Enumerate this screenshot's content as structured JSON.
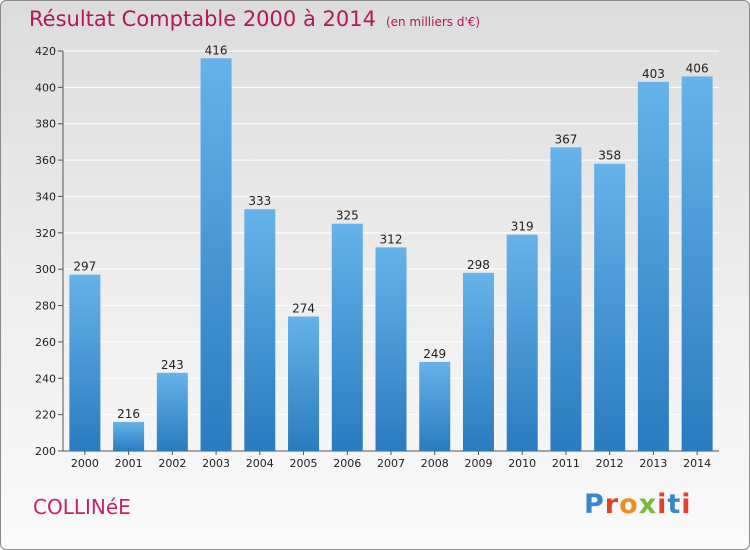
{
  "header": {
    "title": "Résultat Comptable 2000 à 2014",
    "subtitle": "(en milliers d'€)"
  },
  "footer": {
    "commune": "COLLINéE",
    "logo": {
      "text": "Proxiti",
      "colors": [
        "#3a87c8",
        "#e0412b",
        "#ec8f1e",
        "#7ab935",
        "#e0412b",
        "#3a87c8",
        "#e0412b"
      ]
    }
  },
  "colors": {
    "bar_light": "#66b2ea",
    "bar_dark": "#2a7bbf",
    "title": "#b3175a",
    "grid": "#ffffff"
  },
  "chart_data": {
    "type": "bar",
    "title": "Résultat Comptable 2000 à 2014",
    "subtitle": "(en milliers d'€)",
    "categories": [
      "2000",
      "2001",
      "2002",
      "2003",
      "2004",
      "2005",
      "2006",
      "2007",
      "2008",
      "2009",
      "2010",
      "2011",
      "2012",
      "2013",
      "2014"
    ],
    "values": [
      297,
      216,
      243,
      416,
      333,
      274,
      325,
      312,
      249,
      298,
      319,
      367,
      358,
      403,
      406
    ],
    "ylim": [
      200,
      420
    ],
    "yticks": [
      200,
      220,
      240,
      260,
      280,
      300,
      320,
      340,
      360,
      380,
      400,
      420
    ],
    "xlabel": "",
    "ylabel": "",
    "grid": true
  }
}
